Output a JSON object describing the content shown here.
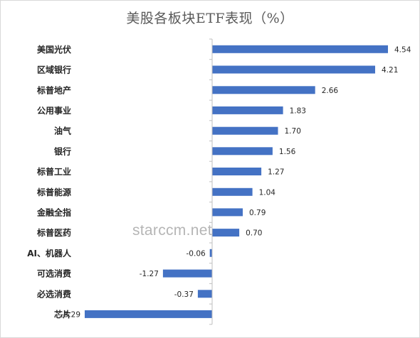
{
  "chart_data": {
    "type": "bar",
    "orientation": "horizontal",
    "title": "美股各板块ETF表现（%）",
    "categories": [
      "美国光伏",
      "区域银行",
      "标普地产",
      "公用事业",
      "油气",
      "银行",
      "标普工业",
      "标普能源",
      "金融全指",
      "标普医药",
      "AI、机器人",
      "可选消费",
      "必选消费",
      "芯片"
    ],
    "values": [
      4.54,
      4.21,
      2.66,
      1.83,
      1.7,
      1.56,
      1.27,
      1.04,
      0.79,
      0.7,
      -0.06,
      -1.27,
      -0.37,
      -3.29
    ],
    "value_labels": [
      "4.54",
      "4.21",
      "2.66",
      "1.83",
      "1.70",
      "1.56",
      "1.27",
      "1.04",
      "0.79",
      "0.70",
      "-0.06",
      "-1.27",
      "-0.37",
      "-3.29"
    ],
    "xlim": [
      -3.29,
      4.54
    ],
    "bar_color": "#4472c4",
    "grid": false,
    "legend": "none"
  },
  "watermark": "starccm.net"
}
